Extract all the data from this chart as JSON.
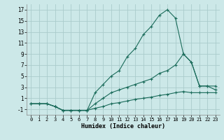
{
  "xlabel": "Humidex (Indice chaleur)",
  "bg_color": "#cce8e8",
  "grid_color": "#aacccc",
  "line_color": "#1a6b5a",
  "xlim": [
    -0.5,
    23.5
  ],
  "ylim": [
    -2,
    18
  ],
  "xticks": [
    0,
    1,
    2,
    3,
    4,
    5,
    6,
    7,
    8,
    9,
    10,
    11,
    12,
    13,
    14,
    15,
    16,
    17,
    18,
    19,
    20,
    21,
    22,
    23
  ],
  "yticks": [
    -1,
    1,
    3,
    5,
    7,
    9,
    11,
    13,
    15,
    17
  ],
  "series1_x": [
    0,
    1,
    2,
    3,
    4,
    5,
    6,
    7,
    8,
    9,
    10,
    11,
    12,
    13,
    14,
    15,
    16,
    17,
    18,
    19,
    20,
    21,
    22,
    23
  ],
  "series1_y": [
    0,
    0,
    0,
    -0.5,
    -1.2,
    -1.2,
    -1.2,
    -1.2,
    -0.8,
    -0.5,
    0,
    0.2,
    0.5,
    0.8,
    1,
    1.2,
    1.5,
    1.7,
    2,
    2.2,
    2,
    2,
    2,
    2
  ],
  "series2_x": [
    0,
    1,
    2,
    3,
    4,
    5,
    6,
    7,
    8,
    9,
    10,
    11,
    12,
    13,
    14,
    15,
    16,
    17,
    18,
    19,
    20,
    21,
    22,
    23
  ],
  "series2_y": [
    0,
    0,
    0,
    -0.5,
    -1.2,
    -1.2,
    -1.2,
    -1.2,
    0,
    1,
    2,
    2.5,
    3,
    3.5,
    4,
    4.5,
    5.5,
    6,
    7,
    9,
    7.5,
    3.2,
    3.2,
    3.2
  ],
  "series3_x": [
    0,
    1,
    2,
    3,
    4,
    5,
    6,
    7,
    8,
    9,
    10,
    11,
    12,
    13,
    14,
    15,
    16,
    17,
    18,
    19,
    20,
    21,
    22,
    23
  ],
  "series3_y": [
    0,
    0,
    0,
    -0.5,
    -1.2,
    -1.2,
    -1.2,
    -1.2,
    2,
    3.5,
    5,
    6,
    8.5,
    10,
    12.5,
    14,
    16,
    17,
    15.5,
    9,
    7.5,
    3.2,
    3.2,
    2.5
  ]
}
